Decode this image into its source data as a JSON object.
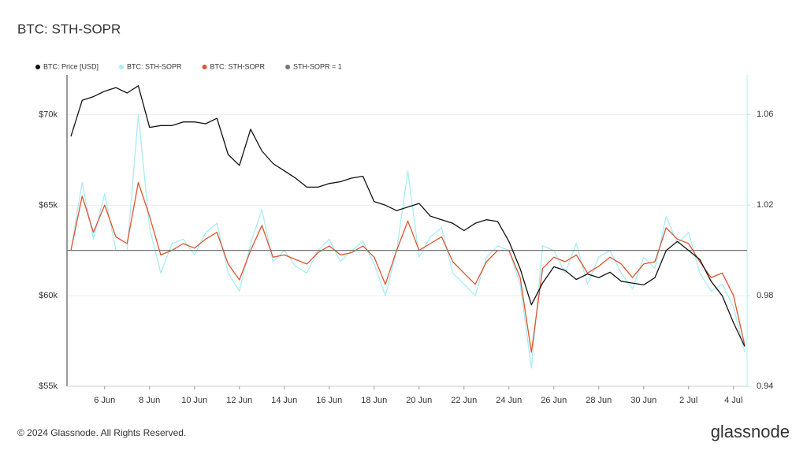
{
  "chart_data": {
    "type": "line",
    "title": "BTC: STH-SOPR",
    "footer": "© 2024 Glassnode. All Rights Reserved.",
    "brand": "glassnode",
    "categories": [
      null,
      null,
      null,
      "6 Jun",
      null,
      null,
      null,
      "8 Jun",
      null,
      null,
      null,
      "10 Jun",
      null,
      null,
      null,
      "12 Jun",
      null,
      null,
      null,
      "14 Jun",
      null,
      null,
      null,
      "16 Jun",
      null,
      null,
      null,
      "18 Jun",
      null,
      null,
      null,
      "20 Jun",
      null,
      null,
      null,
      "22 Jun",
      null,
      null,
      null,
      "24 Jun",
      null,
      null,
      null,
      "26 Jun",
      null,
      null,
      null,
      "28 Jun",
      null,
      null,
      null,
      "30 Jun",
      null,
      null,
      null,
      "2 Jul",
      null,
      null,
      null,
      "4 Jul",
      null
    ],
    "ylim": [
      55000,
      72200
    ],
    "yticks": [
      {
        "value": 55000,
        "label": "$55k"
      },
      {
        "value": 60000,
        "label": "$60k"
      },
      {
        "value": 65000,
        "label": "$65k"
      },
      {
        "value": 70000,
        "label": "$70k"
      }
    ],
    "y2lim": [
      0.94,
      1.0775
    ],
    "y2ticks": [
      0.94,
      0.98,
      1.02,
      1.06
    ],
    "grid": true,
    "series": [
      {
        "name": "BTC: Price [USD]",
        "color": "#111111",
        "values": [
          68800,
          70800,
          71000,
          71300,
          71500,
          71200,
          71600,
          69300,
          69400,
          69400,
          69600,
          69600,
          69500,
          69800,
          67800,
          67200,
          69200,
          68000,
          67300,
          66900,
          66500,
          66000,
          66000,
          66200,
          66300,
          66500,
          66600,
          65200,
          65000,
          64700,
          64900,
          65100,
          64400,
          64200,
          64000,
          63600,
          64000,
          64200,
          64100,
          63000,
          61500,
          59500,
          60700,
          61600,
          61400,
          60900,
          61200,
          61000,
          61300,
          60800,
          60700,
          60600,
          61000,
          62500,
          63000,
          62500,
          62000,
          60800,
          60000,
          58500,
          57200
        ]
      },
      {
        "name": "BTC: STH-SOPR",
        "color": "#a8ecf7",
        "axis": "y2",
        "values": [
          1.0,
          1.03,
          1.005,
          1.025,
          1.0,
          1.0,
          1.06,
          1.01,
          0.99,
          1.003,
          1.005,
          0.998,
          1.008,
          1.012,
          0.99,
          0.982,
          1.003,
          1.018,
          0.995,
          1.0,
          0.993,
          0.99,
          1.0,
          1.005,
          0.995,
          1.0,
          1.004,
          0.994,
          0.98,
          1.0,
          1.035,
          0.997,
          1.006,
          1.01,
          0.99,
          0.985,
          0.98,
          0.997,
          1.002,
          1.0,
          0.985,
          0.948,
          1.002,
          1.0,
          0.99,
          1.003,
          0.985,
          0.997,
          1.0,
          0.99,
          0.983,
          0.997,
          0.992,
          1.015,
          1.003,
          1.008,
          0.99,
          0.982,
          0.985,
          0.975,
          0.955
        ]
      },
      {
        "name": "BTC: STH-SOPR",
        "color": "#e0532c",
        "axis": "y2",
        "values": [
          1.0,
          1.024,
          1.008,
          1.02,
          1.006,
          1.003,
          1.03,
          1.015,
          0.998,
          1.0,
          1.003,
          1.001,
          1.005,
          1.008,
          0.994,
          0.987,
          1.0,
          1.011,
          0.997,
          0.998,
          0.996,
          0.994,
          0.999,
          1.002,
          0.998,
          0.999,
          1.002,
          0.997,
          0.985,
          1.0,
          1.013,
          1.0,
          1.003,
          1.006,
          0.995,
          0.99,
          0.985,
          0.995,
          1.0,
          1.0,
          0.988,
          0.955,
          0.992,
          0.997,
          0.995,
          0.998,
          0.99,
          0.993,
          0.997,
          0.994,
          0.988,
          0.994,
          0.995,
          1.01,
          1.005,
          1.003,
          0.995,
          0.988,
          0.99,
          0.98,
          0.958
        ]
      },
      {
        "name": "STH-SOPR = 1",
        "color": "#777777",
        "axis": "y2",
        "value": 1
      }
    ]
  }
}
